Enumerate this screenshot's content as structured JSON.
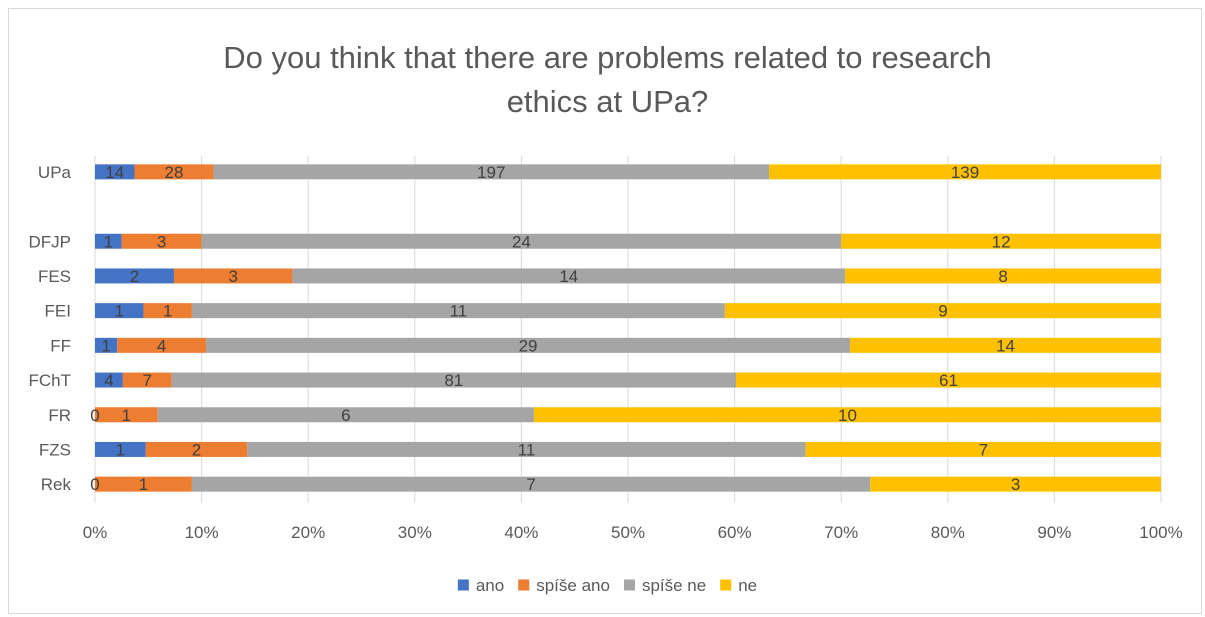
{
  "chart_data": {
    "type": "bar",
    "orientation": "horizontal",
    "stacking": "percent",
    "title": "Do you think that there are problems related to research\nethics at UPa?",
    "categories": [
      "UPa",
      "",
      "DFJP",
      "FES",
      "FEI",
      "FF",
      "FChT",
      "FR",
      "FZS",
      "Rek"
    ],
    "series": [
      {
        "name": "ano",
        "color": "#4472c4",
        "values": [
          14,
          null,
          1,
          2,
          1,
          1,
          4,
          0,
          1,
          0
        ]
      },
      {
        "name": "spíše ano",
        "color": "#ed7d31",
        "values": [
          28,
          null,
          3,
          3,
          1,
          4,
          7,
          1,
          2,
          1
        ]
      },
      {
        "name": "spíše ne",
        "color": "#a5a5a5",
        "values": [
          197,
          null,
          24,
          14,
          11,
          29,
          81,
          6,
          11,
          7
        ]
      },
      {
        "name": "ne",
        "color": "#ffc000",
        "values": [
          139,
          null,
          12,
          8,
          9,
          14,
          61,
          10,
          7,
          3
        ]
      }
    ],
    "xlim": [
      0,
      100
    ],
    "xticks": [
      "0%",
      "10%",
      "20%",
      "30%",
      "40%",
      "50%",
      "60%",
      "70%",
      "80%",
      "90%",
      "100%"
    ],
    "grid": true,
    "legend": "bottom"
  }
}
